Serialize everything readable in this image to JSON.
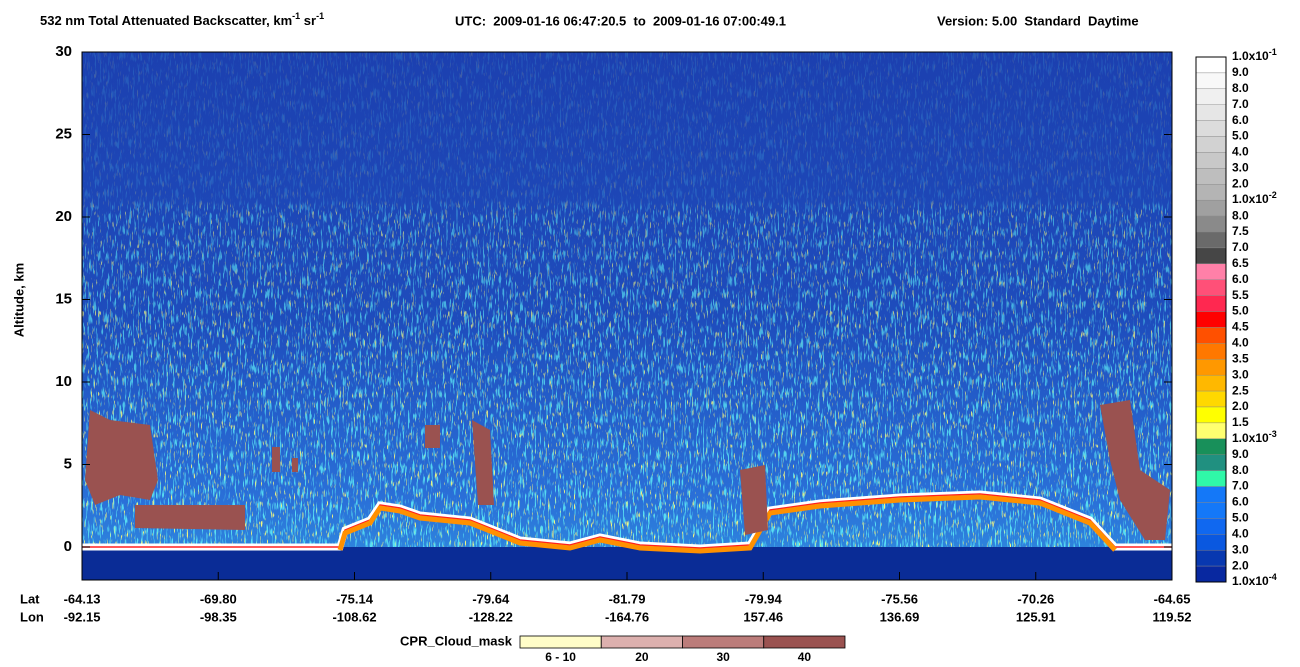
{
  "chart_data": {
    "type": "heatmap",
    "title": {
      "main": "532 nm Total Attenuated Backscatter, km",
      "main_exp": "-1",
      "unit2": " sr",
      "unit2_exp": "-1",
      "utc": "UTC:  2009-01-16 06:47:20.5  to  2009-01-16 07:00:49.1",
      "version": "Version: 5.00  Standard  Daytime"
    },
    "y_label": "Altitude, km",
    "ylim": [
      -2,
      30
    ],
    "yticks": [
      0,
      5,
      10,
      15,
      20,
      25,
      30
    ],
    "x_rows": [
      {
        "label": "Lat",
        "values": [
          "-64.13",
          "-69.80",
          "-75.14",
          "-79.64",
          "-81.79",
          "-79.94",
          "-75.56",
          "-70.26",
          "-64.65"
        ]
      },
      {
        "label": "Lon",
        "values": [
          "-92.15",
          "-98.35",
          "-108.62",
          "-128.22",
          "-164.76",
          "157.46",
          "136.69",
          "125.91",
          "119.52"
        ]
      }
    ],
    "colorbar": {
      "labels": [
        {
          "text": "1.0x10",
          "exp": "-1"
        },
        "9.0",
        "8.0",
        "7.0",
        "6.0",
        "5.0",
        "4.0",
        "3.0",
        "2.0",
        {
          "text": "1.0x10",
          "exp": "-2"
        },
        "8.0",
        "7.5",
        "7.0",
        "6.5",
        "6.0",
        "5.5",
        "5.0",
        "4.5",
        "4.0",
        "3.5",
        "3.0",
        "2.5",
        "2.0",
        "1.5",
        {
          "text": "1.0x10",
          "exp": "-3"
        },
        "9.0",
        "8.0",
        "7.0",
        "6.0",
        "5.0",
        "4.0",
        "3.0",
        "2.0",
        {
          "text": "1.0x10",
          "exp": "-4"
        }
      ],
      "colors": [
        "#ffffff",
        "#f8f8f8",
        "#f0f0f0",
        "#e6e6e6",
        "#dcdcdc",
        "#d2d2d2",
        "#c8c8c8",
        "#bebebe",
        "#b4b4b4",
        "#a0a0a0",
        "#8a8a8a",
        "#6a6a6a",
        "#464646",
        "#ff80a8",
        "#ff5078",
        "#ff2850",
        "#ff0000",
        "#ff5000",
        "#ff7800",
        "#ff9800",
        "#ffb800",
        "#ffd800",
        "#ffff00",
        "#ffff70",
        "#18905a",
        "#209080",
        "#30f8a8",
        "#1478f8",
        "#1478f8",
        "#1068f0",
        "#0a58e0",
        "#0838b0",
        "#0828a0"
      ]
    },
    "legend": {
      "title": "CPR_Cloud_mask",
      "labels": [
        "6 - 10",
        "20",
        "30",
        "40"
      ],
      "colors": [
        "#fffdc8",
        "#dcb0ae",
        "#bb7c7a",
        "#9a5250"
      ]
    }
  }
}
